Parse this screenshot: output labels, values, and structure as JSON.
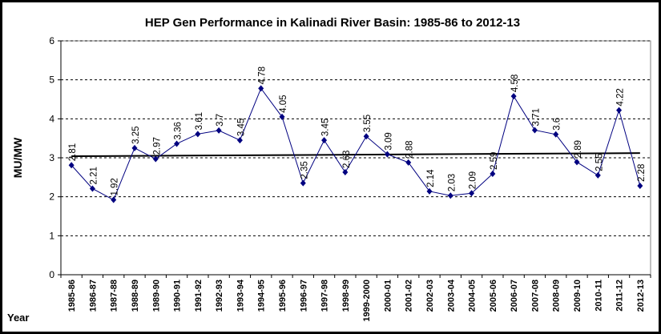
{
  "chart_data": {
    "type": "line",
    "title": "HEP Gen Performance in Kalinadi River Basin: 1985-86 to 2012-13",
    "xlabel": "Year",
    "ylabel": "MU/MW",
    "ylim": [
      0,
      6
    ],
    "yticks": [
      "0",
      "1",
      "2",
      "3",
      "4",
      "5",
      "6"
    ],
    "grid": "horizontal dashed",
    "categories": [
      "1985-86",
      "1986-87",
      "1987-88",
      "1988-89",
      "1989-90",
      "1990-91",
      "1991-92",
      "1992-93",
      "1993-94",
      "1994-95",
      "1995-96",
      "1996-97",
      "1997-98",
      "1998-99",
      "1999-2000",
      "2000-01",
      "2001-02",
      "2002-03",
      "2003-04",
      "2004-05",
      "2005-06",
      "2006-07",
      "2007-08",
      "2008-09",
      "2009-10",
      "2010-11",
      "2011-12",
      "2012-13"
    ],
    "series": [
      {
        "name": "MU/MW",
        "values": [
          2.81,
          2.21,
          1.92,
          3.25,
          2.97,
          3.36,
          3.61,
          3.7,
          3.45,
          4.78,
          4.05,
          2.35,
          3.45,
          2.63,
          3.55,
          3.09,
          2.88,
          2.14,
          2.03,
          2.09,
          2.59,
          4.58,
          3.71,
          3.6,
          2.89,
          2.55,
          4.22,
          2.28
        ],
        "labels": [
          "2.81",
          "2.21",
          "1.92",
          "3.25",
          "2.97",
          "3.36",
          "3.61",
          "3.7",
          "3.45",
          "4.78",
          "4.05",
          "2.35",
          "3.45",
          "2.63",
          "3.55",
          "3.09",
          "2.88",
          "2.14",
          "2.03",
          "2.09",
          "2.59",
          "4.58",
          "3.71",
          "3.6",
          "2.89",
          "2.55",
          "4.22",
          "2.28"
        ],
        "color": "#000080"
      }
    ],
    "trend_line": {
      "start": 3.04,
      "end": 3.12,
      "color": "#000000"
    }
  }
}
